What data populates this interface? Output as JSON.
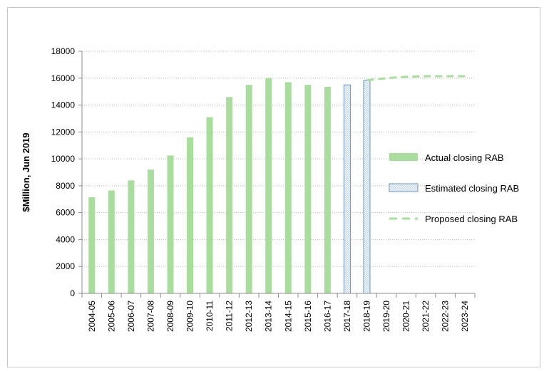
{
  "chart_data": {
    "type": "bar",
    "title": "",
    "ylabel": "$Million, Jun 2019",
    "xlabel": "",
    "ylim": [
      0,
      18000
    ],
    "yticks": [
      0,
      2000,
      4000,
      6000,
      8000,
      10000,
      12000,
      14000,
      16000,
      18000
    ],
    "grid": "horizontal dotted",
    "legend_position": "right",
    "categories": [
      "2004-05",
      "2005-06",
      "2006-07",
      "2007-08",
      "2008-09",
      "2009-10",
      "2010-11",
      "2011-12",
      "2012-13",
      "2013-14",
      "2014-15",
      "2015-16",
      "2016-17",
      "2017-18",
      "2018-19",
      "2019-20",
      "2020-21",
      "2021-22",
      "2022-23",
      "2023-24"
    ],
    "series": [
      {
        "name": "Actual closing RAB",
        "style": "bar",
        "color": "#a9dd9d",
        "values": [
          7150,
          7650,
          8400,
          9200,
          10250,
          11600,
          13100,
          14600,
          15500,
          16000,
          15700,
          15500,
          15350,
          null,
          null,
          null,
          null,
          null,
          null,
          null
        ]
      },
      {
        "name": "Estimated closing RAB",
        "style": "hatched-bar",
        "color": "#bcd2e6",
        "edge_color": "#6f95bd",
        "values": [
          null,
          null,
          null,
          null,
          null,
          null,
          null,
          null,
          null,
          null,
          null,
          null,
          null,
          15500,
          15850,
          null,
          null,
          null,
          null,
          null
        ]
      },
      {
        "name": "Proposed closing RAB",
        "style": "dashed-line",
        "color": "#a9dd9d",
        "values": [
          null,
          null,
          null,
          null,
          null,
          null,
          null,
          null,
          null,
          null,
          null,
          null,
          null,
          null,
          15850,
          16000,
          16100,
          16150,
          16150,
          16150
        ]
      }
    ]
  }
}
